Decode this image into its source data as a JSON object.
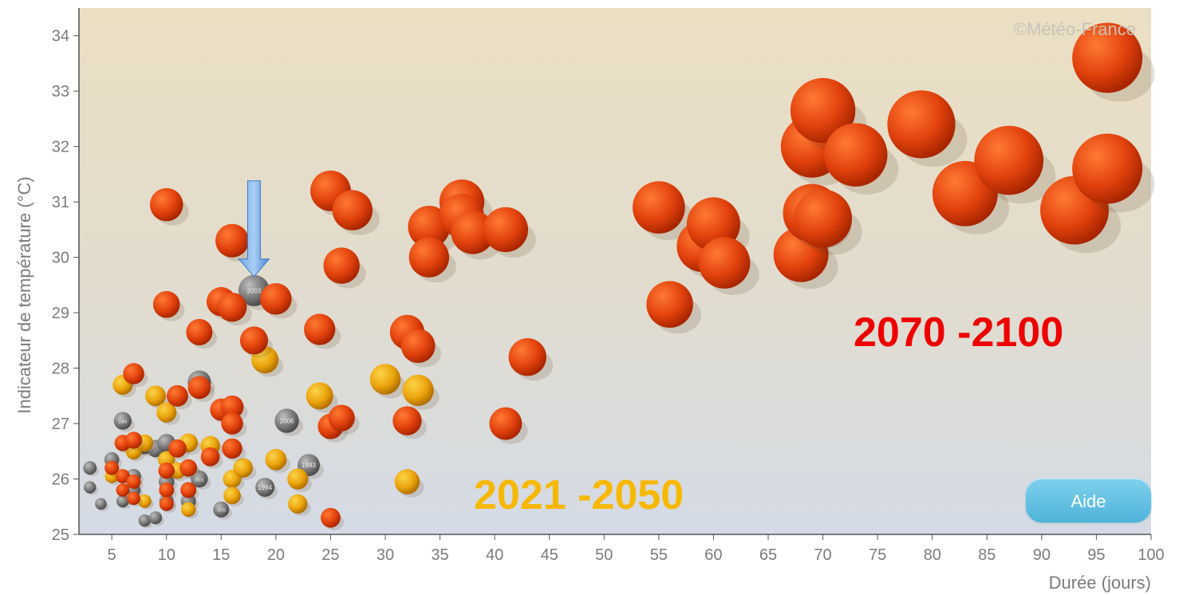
{
  "chart_data": {
    "type": "scatter",
    "title": "",
    "xlabel": "Durée (jours)",
    "ylabel": "Indicateur de température (°C)",
    "xlim": [
      2,
      100
    ],
    "ylim": [
      25,
      34.5
    ],
    "xticks": [
      5,
      10,
      15,
      20,
      25,
      30,
      35,
      40,
      45,
      50,
      55,
      60,
      65,
      70,
      75,
      80,
      85,
      90,
      95,
      100
    ],
    "yticks": [
      25,
      26,
      27,
      28,
      29,
      30,
      31,
      32,
      33,
      34
    ],
    "grid": false,
    "credit": "©Météo-France",
    "period_labels": [
      {
        "text": "2021 -2050",
        "color": "#f7b800"
      },
      {
        "text": "2070 -2100",
        "color": "#ee0000"
      }
    ],
    "highlight": {
      "year_label": "2003",
      "x": 18,
      "y": 29.4,
      "marker": "down-arrow-icon"
    },
    "series": [
      {
        "name": "",
        "color": "#8a8a8a",
        "points": [
          {
            "x": 3,
            "y": 26.2
          },
          {
            "x": 3,
            "y": 25.85
          },
          {
            "x": 4,
            "y": 25.55
          },
          {
            "x": 5,
            "y": 26.35
          },
          {
            "x": 6,
            "y": 27.05,
            "label": "1983"
          },
          {
            "x": 6,
            "y": 25.6
          },
          {
            "x": 7,
            "y": 26.05
          },
          {
            "x": 7,
            "y": 25.8
          },
          {
            "x": 8,
            "y": 25.25
          },
          {
            "x": 8,
            "y": 26.6
          },
          {
            "x": 9,
            "y": 25.3
          },
          {
            "x": 9,
            "y": 26.55
          },
          {
            "x": 10,
            "y": 26.65
          },
          {
            "x": 10,
            "y": 25.95
          },
          {
            "x": 10,
            "y": 25.6
          },
          {
            "x": 12,
            "y": 26.2
          },
          {
            "x": 12,
            "y": 25.6
          },
          {
            "x": 13,
            "y": 26.0,
            "label": "2001"
          },
          {
            "x": 13,
            "y": 27.75
          },
          {
            "x": 15,
            "y": 25.45,
            "label": "1976"
          },
          {
            "x": 18,
            "y": 29.4,
            "label": "2003"
          },
          {
            "x": 19,
            "y": 25.85,
            "label": "1994"
          },
          {
            "x": 21,
            "y": 27.05,
            "label": "2006"
          },
          {
            "x": 23,
            "y": 26.25,
            "label": "1983"
          }
        ]
      },
      {
        "name": "",
        "color": "#eba40c",
        "points": [
          {
            "x": 5,
            "y": 26.05
          },
          {
            "x": 6,
            "y": 27.7
          },
          {
            "x": 7,
            "y": 26.5
          },
          {
            "x": 8,
            "y": 26.65
          },
          {
            "x": 8,
            "y": 25.6
          },
          {
            "x": 9,
            "y": 27.5
          },
          {
            "x": 10,
            "y": 27.2
          },
          {
            "x": 10,
            "y": 26.35
          },
          {
            "x": 11,
            "y": 26.15
          },
          {
            "x": 12,
            "y": 26.65
          },
          {
            "x": 12,
            "y": 25.45
          },
          {
            "x": 14,
            "y": 26.6
          },
          {
            "x": 16,
            "y": 26.0
          },
          {
            "x": 16,
            "y": 25.7
          },
          {
            "x": 17,
            "y": 26.2
          },
          {
            "x": 19,
            "y": 28.15
          },
          {
            "x": 20,
            "y": 26.35
          },
          {
            "x": 22,
            "y": 26.0
          },
          {
            "x": 22,
            "y": 25.55
          },
          {
            "x": 24,
            "y": 27.5
          },
          {
            "x": 30,
            "y": 27.8
          },
          {
            "x": 32,
            "y": 25.95
          },
          {
            "x": 33,
            "y": 27.6
          }
        ]
      },
      {
        "name": "",
        "color": "#e2420d",
        "points": [
          {
            "x": 5,
            "y": 26.2
          },
          {
            "x": 6,
            "y": 26.65
          },
          {
            "x": 6,
            "y": 26.05
          },
          {
            "x": 6,
            "y": 25.8
          },
          {
            "x": 7,
            "y": 27.9
          },
          {
            "x": 7,
            "y": 26.7
          },
          {
            "x": 7,
            "y": 25.95
          },
          {
            "x": 7,
            "y": 25.65
          },
          {
            "x": 10,
            "y": 30.95
          },
          {
            "x": 10,
            "y": 29.15
          },
          {
            "x": 10,
            "y": 26.15
          },
          {
            "x": 10,
            "y": 25.8
          },
          {
            "x": 10,
            "y": 25.55
          },
          {
            "x": 11,
            "y": 27.5
          },
          {
            "x": 11,
            "y": 26.55
          },
          {
            "x": 12,
            "y": 26.2
          },
          {
            "x": 12,
            "y": 25.8
          },
          {
            "x": 13,
            "y": 28.65
          },
          {
            "x": 13,
            "y": 27.65
          },
          {
            "x": 14,
            "y": 26.4
          },
          {
            "x": 15,
            "y": 29.2
          },
          {
            "x": 15,
            "y": 27.25
          },
          {
            "x": 16,
            "y": 30.3
          },
          {
            "x": 16,
            "y": 29.1
          },
          {
            "x": 16,
            "y": 27.3
          },
          {
            "x": 16,
            "y": 27.0
          },
          {
            "x": 16,
            "y": 26.55
          },
          {
            "x": 18,
            "y": 28.5
          },
          {
            "x": 20,
            "y": 29.25
          },
          {
            "x": 24,
            "y": 28.7
          },
          {
            "x": 25,
            "y": 31.2
          },
          {
            "x": 25,
            "y": 26.95
          },
          {
            "x": 25,
            "y": 25.3
          },
          {
            "x": 26,
            "y": 29.85
          },
          {
            "x": 26,
            "y": 27.1
          },
          {
            "x": 27,
            "y": 30.85
          },
          {
            "x": 32,
            "y": 28.65
          },
          {
            "x": 32,
            "y": 27.05
          },
          {
            "x": 33,
            "y": 28.4
          },
          {
            "x": 34,
            "y": 30.55
          },
          {
            "x": 34,
            "y": 30.0
          },
          {
            "x": 37,
            "y": 31.0
          },
          {
            "x": 37,
            "y": 30.75
          },
          {
            "x": 38,
            "y": 30.45
          },
          {
            "x": 41,
            "y": 30.5
          },
          {
            "x": 41,
            "y": 27.0
          },
          {
            "x": 43,
            "y": 28.2
          },
          {
            "x": 55,
            "y": 30.9
          },
          {
            "x": 56,
            "y": 29.15
          },
          {
            "x": 59,
            "y": 30.2
          },
          {
            "x": 60,
            "y": 30.6
          },
          {
            "x": 61,
            "y": 29.9
          },
          {
            "x": 68,
            "y": 30.05
          },
          {
            "x": 69,
            "y": 32.0
          },
          {
            "x": 69,
            "y": 30.8
          },
          {
            "x": 70,
            "y": 32.65
          },
          {
            "x": 70,
            "y": 30.7
          },
          {
            "x": 73,
            "y": 31.85
          },
          {
            "x": 79,
            "y": 32.4
          },
          {
            "x": 83,
            "y": 31.15
          },
          {
            "x": 87,
            "y": 31.75
          },
          {
            "x": 93,
            "y": 30.85
          },
          {
            "x": 96,
            "y": 33.6
          },
          {
            "x": 96,
            "y": 31.6
          }
        ]
      }
    ]
  },
  "help_button": {
    "label": "Aide"
  }
}
